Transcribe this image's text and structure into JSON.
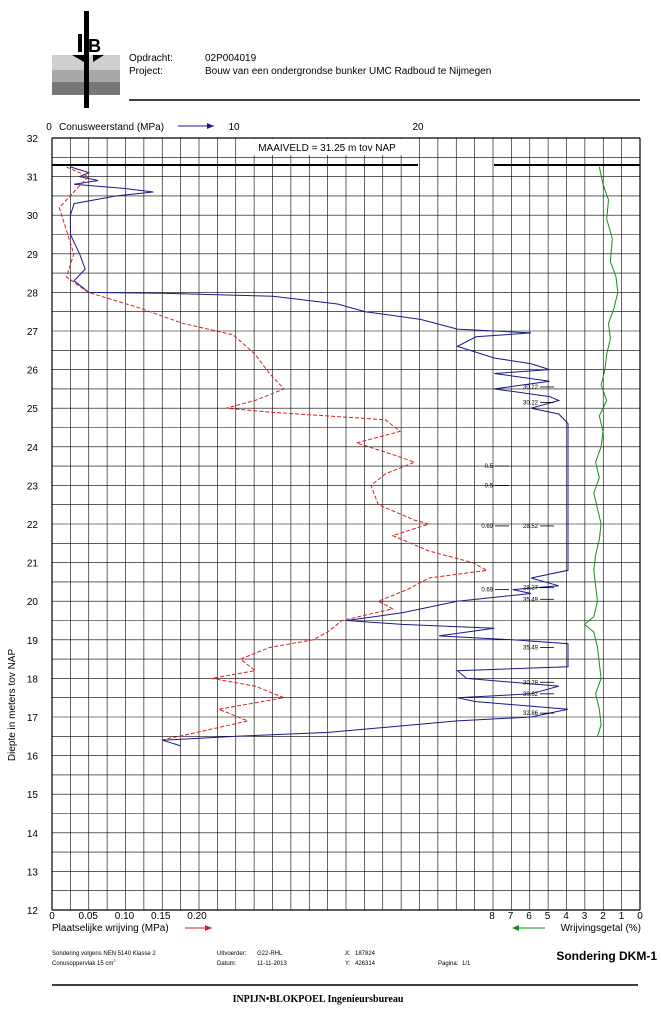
{
  "header": {
    "opdracht_label": "Opdracht:",
    "opdracht_value": "02P004019",
    "project_label": "Project:",
    "project_value": "Bouw van een ondergrondse bunker UMC Radboud te Nijmegen"
  },
  "top_axis": {
    "label": "Conusweerstand (MPa)",
    "ticks": [
      "0",
      "10",
      "20"
    ]
  },
  "maaiveld_label": "MAAIVELD =   31.25  m tov NAP",
  "y_axis": {
    "label": "Diepte in meters tov NAP",
    "ticks": [
      "32",
      "31",
      "30",
      "29",
      "28",
      "27",
      "26",
      "25",
      "24",
      "23",
      "22",
      "21",
      "20",
      "19",
      "18",
      "17",
      "16",
      "15",
      "14",
      "13",
      "12"
    ]
  },
  "bottom_left_axis": {
    "label": "Plaatselijke wrijving (MPa)",
    "ticks": [
      "0",
      "0.05",
      "0.10",
      "0.15",
      "0.20"
    ]
  },
  "bottom_right_axis": {
    "label": "Wrijvingsgetal (%)",
    "ticks": [
      "8",
      "7",
      "6",
      "5",
      "4",
      "3",
      "2",
      "1",
      "0"
    ]
  },
  "annotations": [
    "30.22",
    "30.22",
    "0.5",
    "0.5",
    "0.69",
    "28.52",
    "0.69",
    "28.27",
    "35.49",
    "35.49",
    "30.28",
    "30.62",
    "32.86"
  ],
  "footer": {
    "line1": "Sondering volgens NEN 5140 Klasse 2",
    "line2": "Conusoppervlak 15 cm",
    "line2_sup": "2",
    "uitvoerder_label": "Uitvoerder:",
    "uitvoerder_value": "G22-RHL",
    "datum_label": "Datum:",
    "datum_value": "11-11-2013",
    "x_label": "X:",
    "x_value": "187824",
    "y_label": "Y:",
    "y_value": "426314",
    "pagina_label": "Pagina:",
    "pagina_value": "1/1",
    "title": "Sondering  DKM-1",
    "company": "INPIJN•BLOKPOEL Ingenieursbureau"
  },
  "colors": {
    "cone": "#1a1a8c",
    "friction": "#d62020",
    "ratio": "#1a8c1a",
    "grid": "#000000"
  },
  "chart_data": {
    "type": "line",
    "y_range": [
      12,
      32
    ],
    "surface_level": 31.25,
    "series": [
      {
        "axis": "Conusweerstand (MPa)",
        "x_range": [
          0,
          28
        ],
        "points": [
          [
            1.0,
            31.25
          ],
          [
            2.0,
            31.1
          ],
          [
            1.5,
            31.0
          ],
          [
            2.5,
            30.9
          ],
          [
            1.2,
            30.8
          ],
          [
            3.8,
            30.7
          ],
          [
            5.5,
            30.6
          ],
          [
            3.5,
            30.5
          ],
          [
            1.2,
            30.3
          ],
          [
            1.0,
            30.0
          ],
          [
            1.0,
            29.5
          ],
          [
            1.5,
            29.0
          ],
          [
            1.8,
            28.6
          ],
          [
            1.2,
            28.3
          ],
          [
            2.0,
            28.0
          ],
          [
            6.0,
            27.98
          ],
          [
            12.0,
            27.9
          ],
          [
            15.5,
            27.7
          ],
          [
            17.0,
            27.5
          ],
          [
            20.0,
            27.3
          ],
          [
            22.0,
            27.05
          ],
          [
            26.0,
            26.95
          ],
          [
            23.0,
            26.85
          ],
          [
            22.0,
            26.6
          ],
          [
            24.0,
            26.3
          ],
          [
            26.0,
            26.15
          ],
          [
            27.0,
            26.0
          ],
          [
            24.0,
            25.9
          ],
          [
            27.0,
            25.7
          ],
          [
            24.0,
            25.5
          ],
          [
            27.0,
            25.3
          ],
          [
            27.5,
            25.2
          ],
          [
            26.0,
            25.0
          ],
          [
            27.5,
            24.85
          ],
          [
            28.0,
            24.6
          ],
          [
            28.0,
            21.2
          ],
          [
            28.0,
            20.8
          ],
          [
            26.0,
            20.6
          ],
          [
            27.5,
            20.4
          ],
          [
            25.0,
            20.3
          ],
          [
            26.0,
            20.2
          ],
          [
            22.0,
            20.0
          ],
          [
            19.0,
            19.7
          ],
          [
            16.0,
            19.5
          ],
          [
            19.0,
            19.4
          ],
          [
            24.0,
            19.3
          ],
          [
            21.0,
            19.1
          ],
          [
            25.0,
            19.0
          ],
          [
            28.0,
            18.9
          ],
          [
            28.0,
            18.3
          ],
          [
            22.0,
            18.2
          ],
          [
            22.5,
            18.0
          ],
          [
            27.5,
            17.8
          ],
          [
            26.0,
            17.6
          ],
          [
            22.0,
            17.5
          ],
          [
            23.0,
            17.4
          ],
          [
            28.0,
            17.2
          ],
          [
            26.0,
            17.0
          ],
          [
            22.0,
            16.9
          ],
          [
            15.0,
            16.6
          ],
          [
            10.0,
            16.5
          ],
          [
            6.0,
            16.4
          ],
          [
            7.0,
            16.25
          ]
        ]
      },
      {
        "axis": "Plaatselijke wrijving (MPa)",
        "x_range": [
          0,
          0.56
        ],
        "points": [
          [
            0.02,
            31.25
          ],
          [
            0.05,
            31.0
          ],
          [
            0.03,
            30.6
          ],
          [
            0.01,
            30.2
          ],
          [
            0.02,
            29.6
          ],
          [
            0.03,
            29.0
          ],
          [
            0.02,
            28.4
          ],
          [
            0.05,
            28.0
          ],
          [
            0.12,
            27.6
          ],
          [
            0.18,
            27.2
          ],
          [
            0.25,
            26.9
          ],
          [
            0.28,
            26.4
          ],
          [
            0.3,
            25.9
          ],
          [
            0.32,
            25.5
          ],
          [
            0.28,
            25.2
          ],
          [
            0.24,
            25.0
          ],
          [
            0.3,
            24.9
          ],
          [
            0.46,
            24.7
          ],
          [
            0.48,
            24.4
          ],
          [
            0.42,
            24.1
          ],
          [
            0.47,
            23.8
          ],
          [
            0.5,
            23.6
          ],
          [
            0.46,
            23.3
          ],
          [
            0.44,
            23.0
          ],
          [
            0.45,
            22.5
          ],
          [
            0.5,
            22.1
          ],
          [
            0.52,
            22.0
          ],
          [
            0.47,
            21.7
          ],
          [
            0.52,
            21.3
          ],
          [
            0.58,
            21.0
          ],
          [
            0.6,
            20.8
          ],
          [
            0.52,
            20.6
          ],
          [
            0.49,
            20.3
          ],
          [
            0.45,
            20.0
          ],
          [
            0.47,
            19.8
          ],
          [
            0.4,
            19.5
          ],
          [
            0.38,
            19.2
          ],
          [
            0.36,
            19.0
          ],
          [
            0.3,
            18.8
          ],
          [
            0.26,
            18.5
          ],
          [
            0.28,
            18.2
          ],
          [
            0.22,
            18.0
          ],
          [
            0.28,
            17.8
          ],
          [
            0.32,
            17.5
          ],
          [
            0.23,
            17.2
          ],
          [
            0.27,
            16.9
          ],
          [
            0.2,
            16.6
          ],
          [
            0.15,
            16.4
          ]
        ]
      },
      {
        "axis": "Wrijvingsgetal (%)",
        "x_range": [
          8,
          0
        ],
        "points": [
          [
            2.2,
            31.25
          ],
          [
            2.0,
            30.8
          ],
          [
            1.7,
            30.4
          ],
          [
            1.8,
            29.9
          ],
          [
            1.5,
            29.4
          ],
          [
            1.6,
            28.8
          ],
          [
            1.3,
            28.4
          ],
          [
            1.2,
            28.0
          ],
          [
            1.4,
            27.6
          ],
          [
            1.7,
            27.2
          ],
          [
            1.6,
            26.8
          ],
          [
            1.8,
            26.4
          ],
          [
            1.9,
            26.0
          ],
          [
            2.1,
            25.6
          ],
          [
            1.8,
            25.2
          ],
          [
            2.2,
            24.8
          ],
          [
            2.0,
            24.4
          ],
          [
            2.1,
            24.0
          ],
          [
            2.4,
            23.6
          ],
          [
            2.2,
            23.2
          ],
          [
            2.5,
            22.8
          ],
          [
            2.3,
            22.4
          ],
          [
            2.1,
            22.0
          ],
          [
            2.2,
            21.6
          ],
          [
            2.4,
            21.2
          ],
          [
            2.5,
            20.8
          ],
          [
            2.4,
            20.4
          ],
          [
            2.3,
            20.0
          ],
          [
            2.5,
            19.6
          ],
          [
            3.0,
            19.4
          ],
          [
            2.5,
            19.2
          ],
          [
            2.3,
            18.8
          ],
          [
            2.2,
            18.4
          ],
          [
            2.1,
            18.0
          ],
          [
            2.4,
            17.6
          ],
          [
            2.2,
            17.2
          ],
          [
            2.1,
            16.8
          ],
          [
            2.3,
            16.5
          ]
        ]
      }
    ],
    "annotations": [
      {
        "label": "30.22",
        "y": 25.55
      },
      {
        "label": "30.22",
        "y": 25.15
      },
      {
        "label": "0.5",
        "y": 23.5
      },
      {
        "label": "0.5",
        "y": 23.0
      },
      {
        "label": "0.69",
        "y": 21.95
      },
      {
        "label": "28.52",
        "y": 21.95
      },
      {
        "label": "0.69",
        "y": 20.3
      },
      {
        "label": "28.27",
        "y": 20.35
      },
      {
        "label": "35.49",
        "y": 20.05
      },
      {
        "label": "35.49",
        "y": 18.8
      },
      {
        "label": "30.28",
        "y": 17.9
      },
      {
        "label": "30.62",
        "y": 17.6
      },
      {
        "label": "32.86",
        "y": 17.1
      }
    ]
  }
}
